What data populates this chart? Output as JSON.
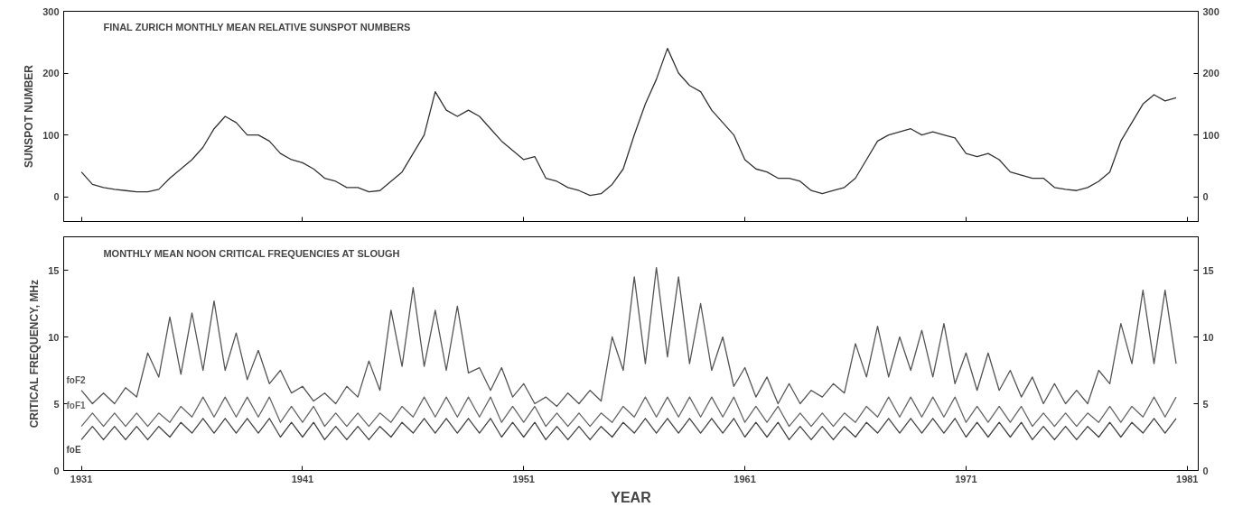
{
  "chart_data": [
    {
      "type": "line",
      "title": "FINAL ZURICH MONTHLY MEAN RELATIVE SUNSPOT NUMBERS",
      "ylabel": "SUNSPOT NUMBER",
      "x": [
        1931,
        1931.5,
        1932,
        1932.5,
        1933,
        1933.5,
        1934,
        1934.5,
        1935,
        1935.5,
        1936,
        1936.5,
        1937,
        1937.5,
        1938,
        1938.5,
        1939,
        1939.5,
        1940,
        1940.5,
        1941,
        1941.5,
        1942,
        1942.5,
        1943,
        1943.5,
        1944,
        1944.5,
        1945,
        1945.5,
        1946,
        1946.5,
        1947,
        1947.5,
        1948,
        1948.5,
        1949,
        1949.5,
        1950,
        1950.5,
        1951,
        1951.5,
        1952,
        1952.5,
        1953,
        1953.5,
        1954,
        1954.5,
        1955,
        1955.5,
        1956,
        1956.5,
        1957,
        1957.5,
        1958,
        1958.5,
        1959,
        1959.5,
        1960,
        1960.5,
        1961,
        1961.5,
        1962,
        1962.5,
        1963,
        1963.5,
        1964,
        1964.5,
        1965,
        1965.5,
        1966,
        1966.5,
        1967,
        1967.5,
        1968,
        1968.5,
        1969,
        1969.5,
        1970,
        1970.5,
        1971,
        1971.5,
        1972,
        1972.5,
        1973,
        1973.5,
        1974,
        1974.5,
        1975,
        1975.5,
        1976,
        1976.5,
        1977,
        1977.5,
        1978,
        1978.5,
        1979,
        1979.5,
        1980,
        1980.5
      ],
      "series": [
        {
          "color": "#333333",
          "values": [
            40,
            20,
            15,
            12,
            10,
            8,
            8,
            12,
            30,
            45,
            60,
            80,
            110,
            130,
            120,
            100,
            100,
            90,
            70,
            60,
            55,
            45,
            30,
            25,
            15,
            15,
            8,
            10,
            25,
            40,
            70,
            100,
            170,
            140,
            130,
            140,
            130,
            110,
            90,
            75,
            60,
            65,
            30,
            25,
            15,
            10,
            2,
            5,
            20,
            45,
            100,
            150,
            190,
            240,
            200,
            180,
            170,
            140,
            120,
            100,
            60,
            45,
            40,
            30,
            30,
            25,
            10,
            5,
            10,
            15,
            30,
            60,
            90,
            100,
            105,
            110,
            100,
            105,
            100,
            95,
            70,
            65,
            70,
            60,
            40,
            35,
            30,
            30,
            15,
            12,
            10,
            15,
            25,
            40,
            90,
            120,
            150,
            165,
            155,
            160
          ]
        }
      ],
      "xlim": [
        1930.2,
        1981.5
      ],
      "ylim": [
        -40,
        300
      ],
      "xticks": [
        1931,
        1941,
        1951,
        1961,
        1971,
        1981
      ],
      "yticks": [
        0,
        100,
        200,
        300
      ],
      "y2lim": [
        -40,
        300
      ],
      "y2ticks": [
        0,
        100,
        200,
        300
      ],
      "tick_labels": "y"
    },
    {
      "type": "line",
      "title": "MONTHLY MEAN NOON CRITICAL FREQUENCIES AT SLOUGH",
      "xlabel": "YEAR",
      "ylabel": "CRITICAL FREQUENCY, MHz",
      "x": [
        1931,
        1931.5,
        1932,
        1932.5,
        1933,
        1933.5,
        1934,
        1934.5,
        1935,
        1935.5,
        1936,
        1936.5,
        1937,
        1937.5,
        1938,
        1938.5,
        1939,
        1939.5,
        1940,
        1940.5,
        1941,
        1941.5,
        1942,
        1942.5,
        1943,
        1943.5,
        1944,
        1944.5,
        1945,
        1945.5,
        1946,
        1946.5,
        1947,
        1947.5,
        1948,
        1948.5,
        1949,
        1949.5,
        1950,
        1950.5,
        1951,
        1951.5,
        1952,
        1952.5,
        1953,
        1953.5,
        1954,
        1954.5,
        1955,
        1955.5,
        1956,
        1956.5,
        1957,
        1957.5,
        1958,
        1958.5,
        1959,
        1959.5,
        1960,
        1960.5,
        1961,
        1961.5,
        1962,
        1962.5,
        1963,
        1963.5,
        1964,
        1964.5,
        1965,
        1965.5,
        1966,
        1966.5,
        1967,
        1967.5,
        1968,
        1968.5,
        1969,
        1969.5,
        1970,
        1970.5,
        1971,
        1971.5,
        1972,
        1972.5,
        1973,
        1973.5,
        1974,
        1974.5,
        1975,
        1975.5,
        1976,
        1976.5,
        1977,
        1977.5,
        1978,
        1978.5,
        1979,
        1979.5,
        1980,
        1980.5
      ],
      "series": [
        {
          "name": "foF2",
          "color": "#555555",
          "values": [
            6.0,
            5.0,
            5.8,
            5.0,
            6.2,
            5.5,
            8.8,
            7.0,
            11.5,
            7.2,
            11.8,
            7.5,
            12.7,
            7.5,
            10.3,
            6.8,
            9.0,
            6.5,
            7.5,
            5.8,
            6.3,
            5.2,
            5.8,
            5.0,
            6.3,
            5.5,
            8.2,
            6.0,
            12.0,
            7.8,
            13.7,
            7.8,
            12.0,
            7.5,
            12.3,
            7.3,
            7.7,
            6.0,
            7.7,
            5.5,
            6.5,
            5.0,
            5.5,
            4.8,
            5.8,
            5.0,
            6.0,
            5.2,
            10.0,
            7.5,
            14.5,
            8.0,
            15.2,
            8.5,
            14.5,
            8.0,
            12.5,
            7.5,
            10.0,
            6.3,
            7.7,
            5.5,
            7.0,
            5.0,
            6.5,
            5.0,
            6.0,
            5.5,
            6.5,
            5.8,
            9.5,
            7.0,
            10.8,
            7.0,
            10.0,
            7.5,
            10.5,
            7.0,
            11.0,
            6.5,
            8.8,
            6.0,
            8.8,
            6.0,
            7.5,
            5.5,
            7.0,
            5.0,
            6.5,
            5.0,
            6.0,
            5.0,
            7.5,
            6.5,
            11.0,
            8.0,
            13.5,
            8.0,
            13.5,
            8.0
          ]
        },
        {
          "name": "foF1",
          "color": "#666666",
          "values": [
            3.3,
            4.3,
            3.3,
            4.3,
            3.3,
            4.3,
            3.3,
            4.3,
            3.6,
            4.8,
            4.0,
            5.5,
            4.0,
            5.5,
            4.0,
            5.5,
            4.0,
            5.5,
            3.6,
            4.8,
            3.6,
            4.8,
            3.3,
            4.3,
            3.3,
            4.3,
            3.3,
            4.3,
            3.6,
            4.8,
            4.0,
            5.5,
            4.0,
            5.5,
            4.0,
            5.5,
            4.0,
            5.5,
            3.6,
            4.8,
            3.6,
            4.8,
            3.3,
            4.3,
            3.3,
            4.3,
            3.3,
            4.3,
            3.6,
            4.8,
            4.0,
            5.5,
            4.0,
            5.5,
            4.0,
            5.5,
            4.0,
            5.5,
            4.0,
            5.5,
            3.6,
            4.8,
            3.6,
            4.8,
            3.3,
            4.3,
            3.3,
            4.3,
            3.3,
            4.3,
            3.6,
            4.8,
            4.0,
            5.5,
            4.0,
            5.5,
            4.0,
            5.5,
            4.0,
            5.5,
            3.6,
            4.8,
            3.6,
            4.8,
            3.6,
            4.8,
            3.3,
            4.3,
            3.3,
            4.3,
            3.3,
            4.3,
            3.6,
            4.8,
            3.6,
            4.8,
            4.0,
            5.5,
            4.0,
            5.5
          ]
        },
        {
          "name": "foE",
          "color": "#444444",
          "values": [
            2.3,
            3.3,
            2.3,
            3.3,
            2.3,
            3.3,
            2.3,
            3.3,
            2.5,
            3.6,
            2.8,
            3.9,
            2.8,
            3.9,
            2.8,
            3.9,
            2.8,
            3.9,
            2.5,
            3.6,
            2.5,
            3.6,
            2.3,
            3.3,
            2.3,
            3.3,
            2.3,
            3.3,
            2.5,
            3.6,
            2.8,
            3.9,
            2.8,
            3.9,
            2.8,
            3.9,
            2.8,
            3.9,
            2.5,
            3.6,
            2.5,
            3.6,
            2.3,
            3.3,
            2.3,
            3.3,
            2.3,
            3.3,
            2.5,
            3.6,
            2.8,
            3.9,
            2.8,
            3.9,
            2.8,
            3.9,
            2.8,
            3.9,
            2.8,
            3.9,
            2.5,
            3.6,
            2.5,
            3.6,
            2.3,
            3.3,
            2.3,
            3.3,
            2.3,
            3.3,
            2.5,
            3.6,
            2.8,
            3.9,
            2.8,
            3.9,
            2.8,
            3.9,
            2.8,
            3.9,
            2.5,
            3.6,
            2.5,
            3.6,
            2.5,
            3.6,
            2.3,
            3.3,
            2.3,
            3.3,
            2.3,
            3.3,
            2.5,
            3.6,
            2.5,
            3.6,
            2.8,
            3.9,
            2.8,
            3.9
          ]
        }
      ],
      "xlim": [
        1930.2,
        1981.5
      ],
      "ylim": [
        0,
        17.5
      ],
      "xticks": [
        1931,
        1941,
        1951,
        1961,
        1971,
        1981
      ],
      "yticks": [
        0,
        5,
        10,
        15
      ],
      "y2lim": [
        0,
        17.5
      ],
      "y2ticks": [
        0,
        5,
        10,
        15
      ]
    }
  ]
}
